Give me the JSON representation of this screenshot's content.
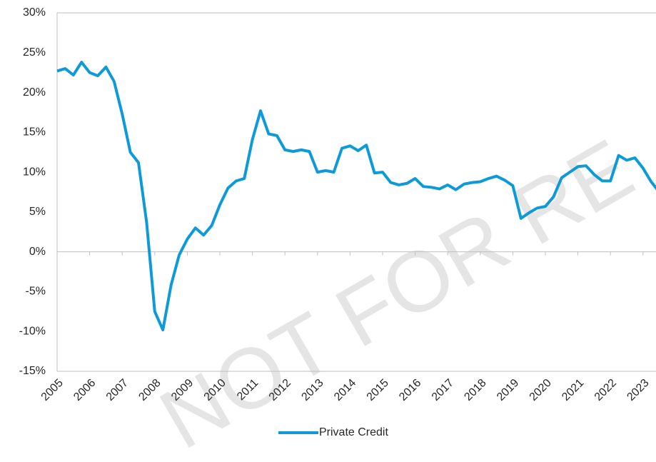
{
  "chart_data": {
    "type": "line",
    "categories": [
      "2005",
      null,
      null,
      null,
      "2006",
      null,
      null,
      null,
      "2007",
      null,
      null,
      null,
      "2008",
      null,
      null,
      null,
      "2009",
      null,
      null,
      null,
      "2010",
      null,
      null,
      null,
      "2011",
      null,
      null,
      null,
      "2012",
      null,
      null,
      null,
      "2013",
      null,
      null,
      null,
      "2014",
      null,
      null,
      null,
      "2015",
      null,
      null,
      null,
      "2016",
      null,
      null,
      null,
      "2017",
      null,
      null,
      null,
      "2018",
      null,
      null,
      null,
      "2019",
      null,
      null,
      null,
      "2020",
      null,
      null,
      null,
      "2021",
      null,
      null,
      null,
      "2022",
      null,
      null,
      null,
      "2023",
      null,
      null
    ],
    "series": [
      {
        "name": "Private Credit",
        "color": "#0e9ad7",
        "values": [
          22.7,
          23.0,
          22.2,
          23.8,
          22.5,
          22.1,
          23.2,
          21.4,
          17.3,
          12.5,
          11.2,
          3.7,
          -7.5,
          -9.8,
          -4.2,
          -0.4,
          1.6,
          3.0,
          2.1,
          3.3,
          5.9,
          8.0,
          8.9,
          9.2,
          14.1,
          17.7,
          14.8,
          14.6,
          12.8,
          12.6,
          12.8,
          12.6,
          10.0,
          10.2,
          10.0,
          13.0,
          13.3,
          12.7,
          13.4,
          9.9,
          10.0,
          8.7,
          8.4,
          8.6,
          9.2,
          8.2,
          8.1,
          7.9,
          8.4,
          7.8,
          8.5,
          8.7,
          8.8,
          9.2,
          9.5,
          9.0,
          8.3,
          4.2,
          4.9,
          5.5,
          5.7,
          6.9,
          9.3,
          10.0,
          10.7,
          10.8,
          9.7,
          8.9,
          8.9,
          12.1,
          11.5,
          11.8,
          10.5,
          8.8,
          7.5
        ]
      }
    ],
    "ylim": [
      -15,
      30
    ],
    "yticks": [
      {
        "value": -15,
        "label": "-15%"
      },
      {
        "value": -10,
        "label": "-10%"
      },
      {
        "value": -5,
        "label": "-5%"
      },
      {
        "value": 0,
        "label": "0%"
      },
      {
        "value": 5,
        "label": "5%"
      },
      {
        "value": 10,
        "label": "10%"
      },
      {
        "value": 15,
        "label": "15%"
      },
      {
        "value": 20,
        "label": "20%"
      },
      {
        "value": 25,
        "label": "25%"
      },
      {
        "value": 30,
        "label": "30%"
      }
    ],
    "grid": false,
    "legend": "bottom",
    "watermark": "NOT FOR RE"
  }
}
